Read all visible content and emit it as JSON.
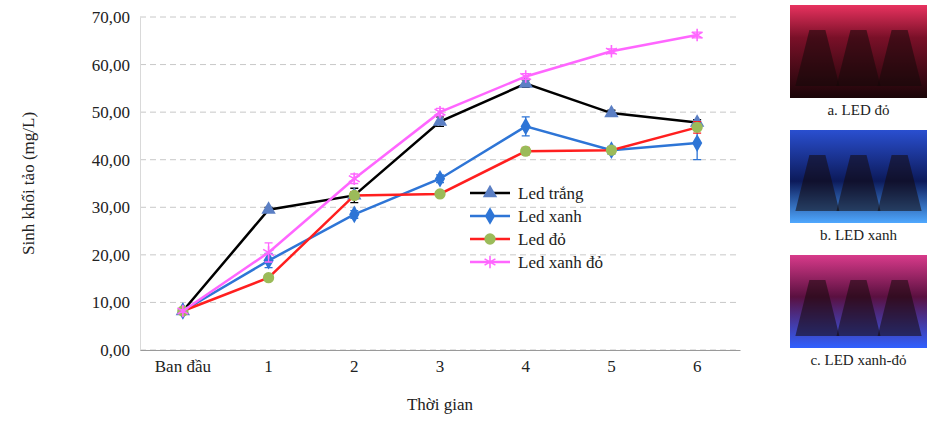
{
  "chart_data": {
    "type": "line",
    "x_label": "Thời gian",
    "y_label": "Sinh khối tảo (mg/L)",
    "categories": [
      "Ban đầu",
      "1",
      "2",
      "3",
      "4",
      "5",
      "6"
    ],
    "ylim": [
      0,
      70
    ],
    "yticks": [
      {
        "value": 0,
        "label": "0,00"
      },
      {
        "value": 10,
        "label": "10,00"
      },
      {
        "value": 20,
        "label": "20,00"
      },
      {
        "value": 30,
        "label": "30,00"
      },
      {
        "value": 40,
        "label": "40,00"
      },
      {
        "value": 50,
        "label": "50,00"
      },
      {
        "value": 60,
        "label": "60,00"
      },
      {
        "value": 70,
        "label": "70,00"
      }
    ],
    "grid": true,
    "legend": "lower right",
    "series": [
      {
        "name": "Led trắng",
        "color": "#000000",
        "marker": "triangle",
        "values": [
          8.2,
          29.5,
          32.5,
          48.0,
          56.0,
          49.8,
          47.8
        ],
        "errors": [
          0.3,
          0.5,
          1.5,
          1.0,
          0.8,
          0.6,
          0.6
        ]
      },
      {
        "name": "Led xanh",
        "color": "#2e75d6",
        "marker": "diamond",
        "values": [
          8.2,
          18.8,
          28.5,
          36.0,
          47.0,
          42.0,
          43.5
        ],
        "errors": [
          0.3,
          1.5,
          0.8,
          0.8,
          2.0,
          0.8,
          3.5
        ]
      },
      {
        "name": "Led đỏ",
        "color": "#ff1f1f",
        "marker": "circle",
        "values": [
          8.2,
          15.2,
          32.5,
          32.8,
          41.8,
          42.0,
          46.8
        ],
        "errors": [
          0.3,
          0.5,
          0.8,
          0.5,
          0.8,
          0.5,
          1.2
        ]
      },
      {
        "name": "Led xanh đỏ",
        "color": "#ff66ff",
        "marker": "asterisk",
        "values": [
          8.2,
          20.5,
          36.0,
          50.0,
          57.5,
          62.8,
          66.2
        ],
        "errors": [
          0.3,
          2.0,
          1.0,
          0.8,
          0.6,
          0.5,
          0.6
        ]
      }
    ]
  },
  "photos": [
    {
      "caption": "a. LED đỏ"
    },
    {
      "caption": "b. LED xanh"
    },
    {
      "caption": "c. LED xanh-đỏ"
    }
  ]
}
